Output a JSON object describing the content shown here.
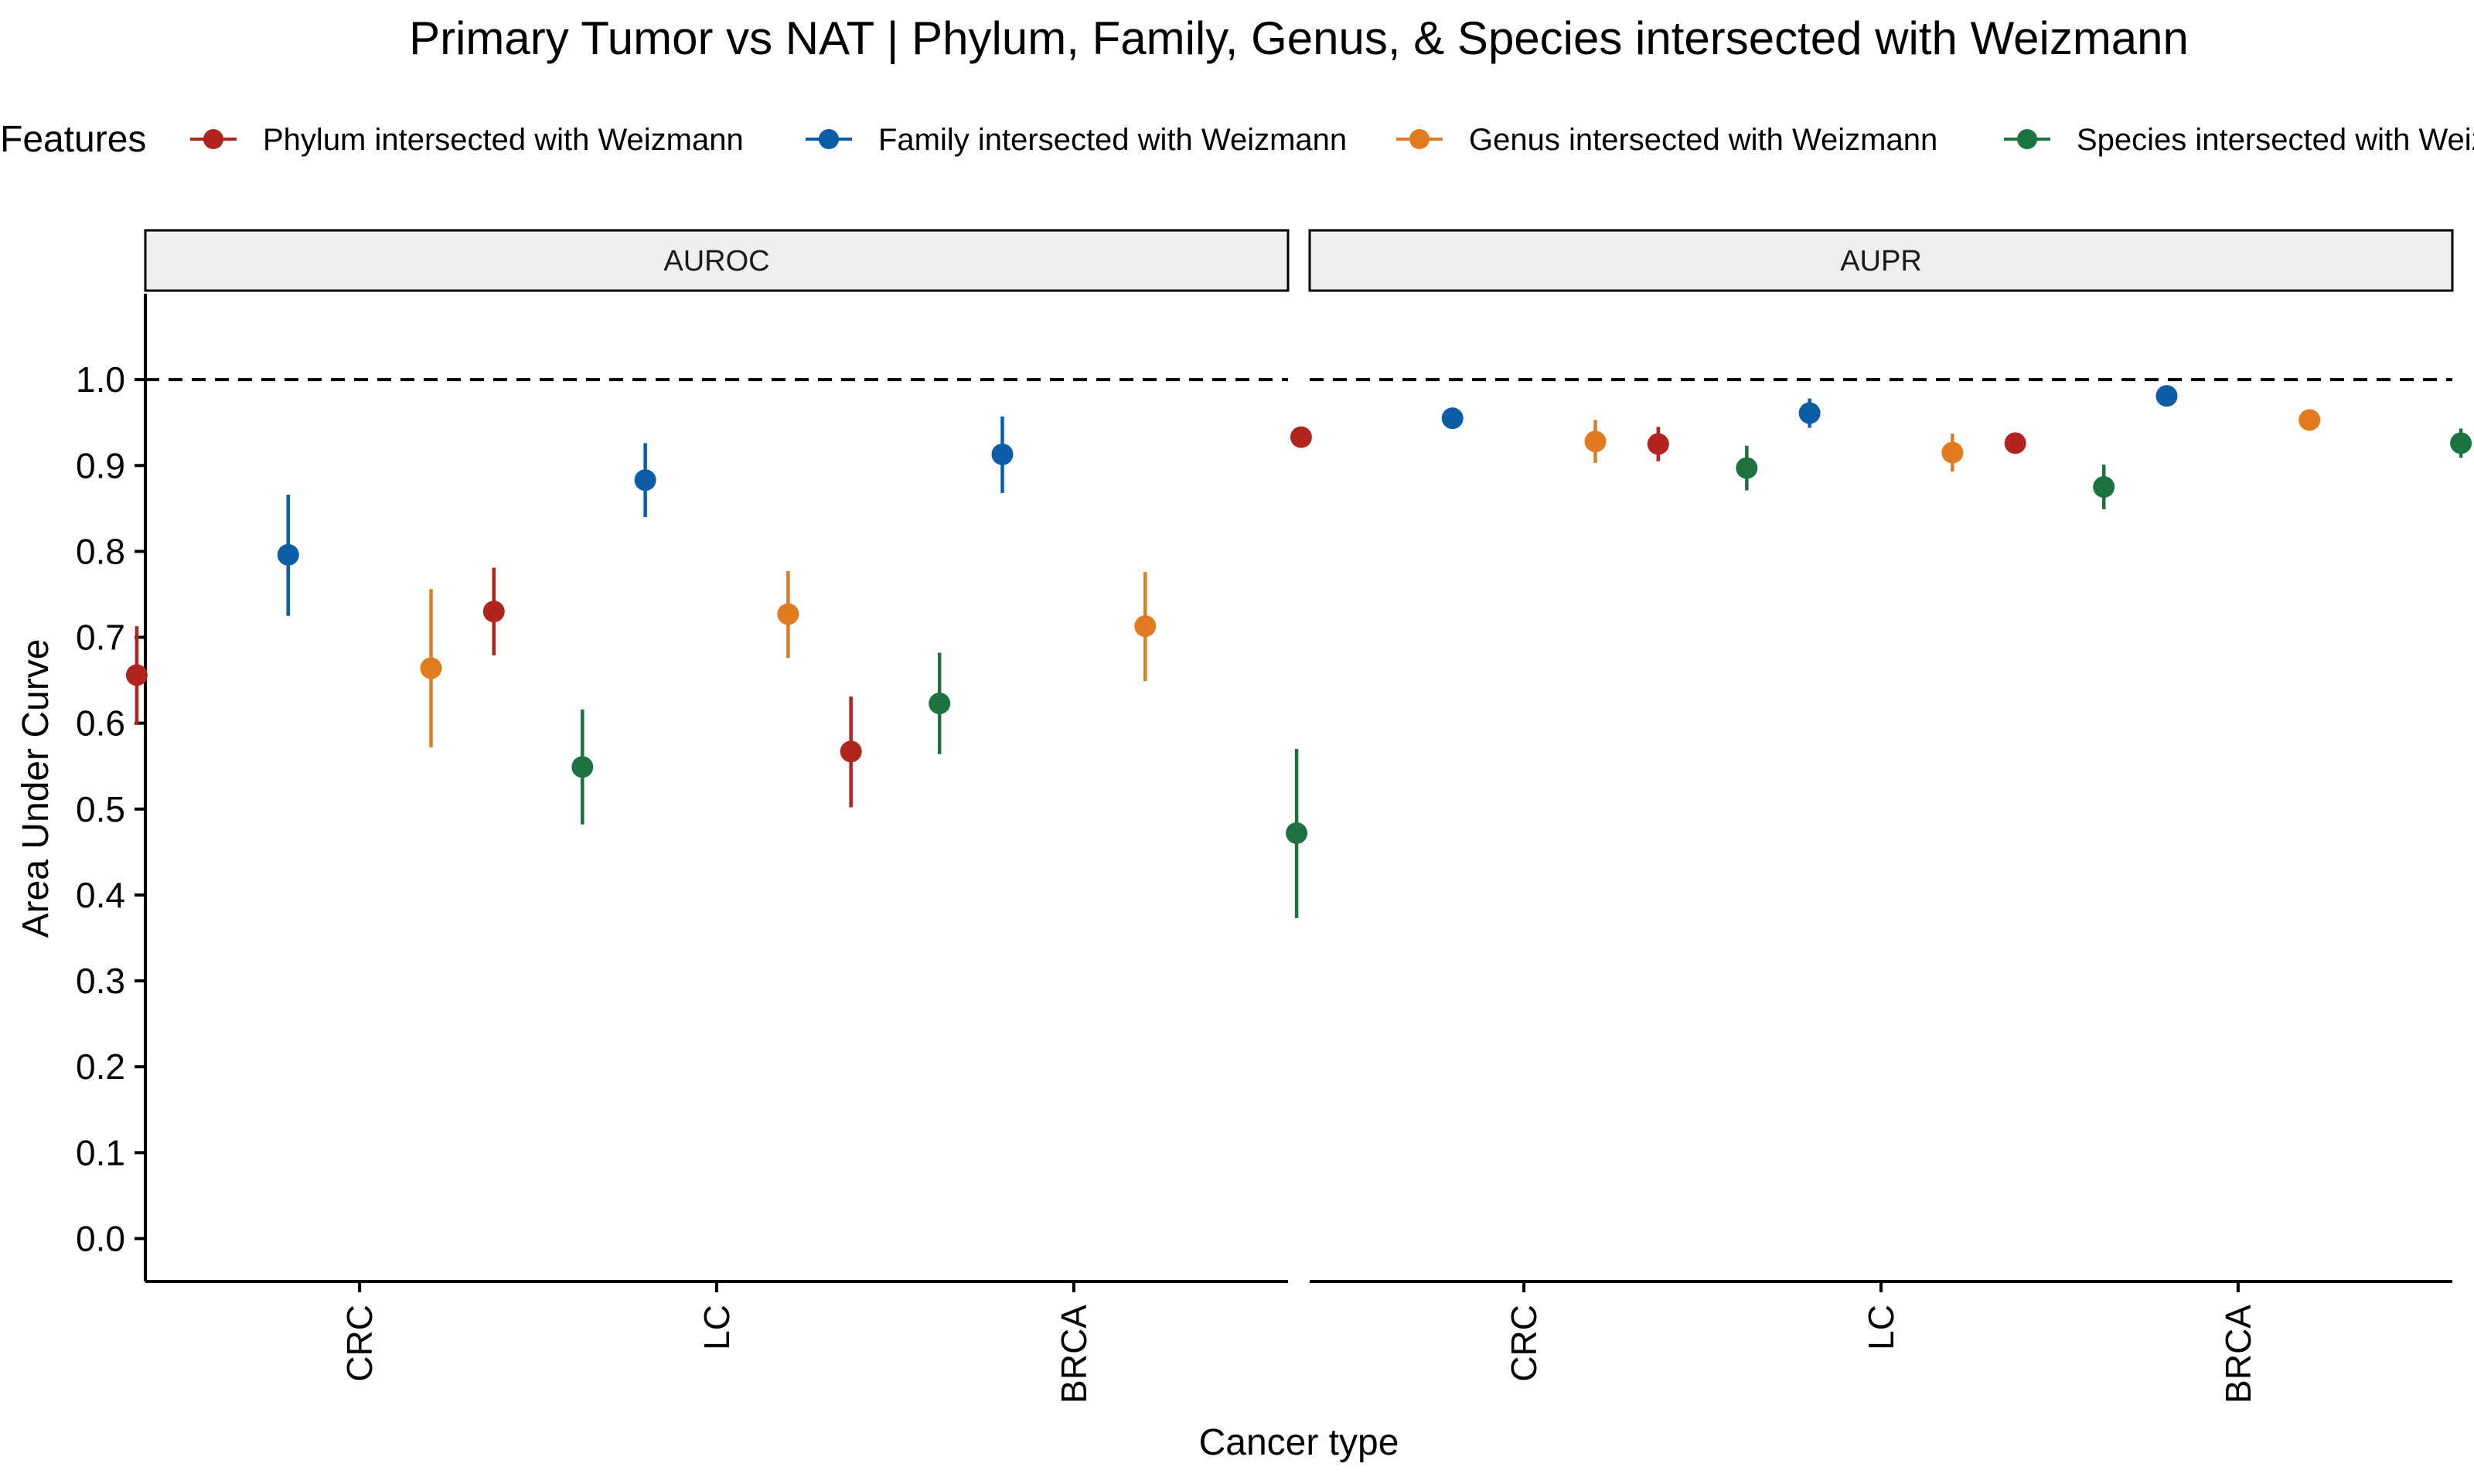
{
  "chart_data": {
    "type": "scatter",
    "title": "Primary Tumor vs NAT | Phylum, Family, Genus, & Species intersected with Weizmann",
    "xlabel": "Cancer type",
    "ylabel": "Area Under Curve",
    "ylim": [
      0,
      1
    ],
    "y_ticks": [
      "0.0",
      "0.1",
      "0.2",
      "0.3",
      "0.4",
      "0.5",
      "0.6",
      "0.7",
      "0.8",
      "0.9",
      "1.0"
    ],
    "reference_line": 1.0,
    "categories": [
      "CRC",
      "LC",
      "BRCA"
    ],
    "legend": {
      "title": "Features",
      "placement": "top"
    },
    "panels": [
      {
        "name": "AUROC",
        "series": [
          {
            "name": "Phylum intersected with Weizmann",
            "color": "#B2251E",
            "values": [
              0.656,
              0.73,
              0.567
            ],
            "lower": [
              0.598,
              0.679,
              0.502
            ],
            "upper": [
              0.713,
              0.781,
              0.631
            ]
          },
          {
            "name": "Family intersected with Weizmann",
            "color": "#0C5DA5",
            "values": [
              0.796,
              0.883,
              0.913
            ],
            "lower": [
              0.725,
              0.84,
              0.868
            ],
            "upper": [
              0.866,
              0.926,
              0.957
            ]
          },
          {
            "name": "Genus intersected with Weizmann",
            "color": "#E07B1F",
            "values": [
              0.664,
              0.727,
              0.713
            ],
            "lower": [
              0.572,
              0.676,
              0.649
            ],
            "upper": [
              0.756,
              0.777,
              0.776
            ]
          },
          {
            "name": "Species intersected with Weizmann",
            "color": "#1C7340",
            "values": [
              0.549,
              0.623,
              0.472
            ],
            "lower": [
              0.482,
              0.564,
              0.373
            ],
            "upper": [
              0.616,
              0.682,
              0.57
            ]
          }
        ]
      },
      {
        "name": "AUPR",
        "series": [
          {
            "name": "Phylum intersected with Weizmann",
            "color": "#B2251E",
            "values": [
              0.933,
              0.925,
              0.926
            ],
            "lower": [
              0.922,
              0.905,
              0.918
            ],
            "upper": [
              0.944,
              0.945,
              0.934
            ]
          },
          {
            "name": "Family intersected with Weizmann",
            "color": "#0C5DA5",
            "values": [
              0.955,
              0.961,
              0.981
            ],
            "lower": [
              0.943,
              0.944,
              0.973
            ],
            "upper": [
              0.967,
              0.978,
              0.989
            ]
          },
          {
            "name": "Genus intersected with Weizmann",
            "color": "#E07B1F",
            "values": [
              0.928,
              0.915,
              0.953
            ],
            "lower": [
              0.903,
              0.893,
              0.944
            ],
            "upper": [
              0.953,
              0.937,
              0.962
            ]
          },
          {
            "name": "Species intersected with Weizmann",
            "color": "#1C7340",
            "values": [
              0.897,
              0.875,
              0.926
            ],
            "lower": [
              0.871,
              0.849,
              0.909
            ],
            "upper": [
              0.923,
              0.901,
              0.943
            ]
          }
        ]
      }
    ]
  }
}
